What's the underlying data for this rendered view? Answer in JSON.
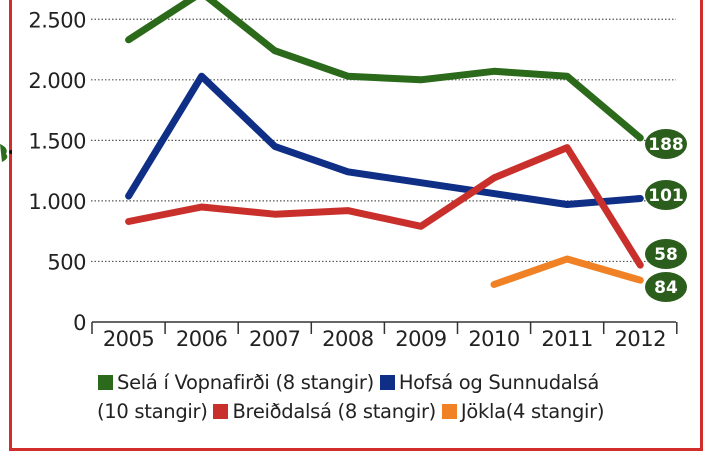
{
  "chart_data": {
    "type": "line",
    "title": "",
    "xlabel": "",
    "ylabel": "",
    "x": [
      "2005",
      "2006",
      "2007",
      "2008",
      "2009",
      "2010",
      "2011",
      "2012"
    ],
    "ylim": [
      0,
      2700
    ],
    "yticks": [
      0,
      500,
      1000,
      1500,
      2000,
      2500
    ],
    "ytick_labels": [
      "0",
      "500",
      "1.000",
      "1.500",
      "2.000",
      "2.500"
    ],
    "grid": "horizontal-dotted",
    "legend_position": "bottom",
    "series": [
      {
        "name": "Selá í Vopnafirði (8 stangir)",
        "color": "#2b6a1a",
        "values": [
          2330,
          2720,
          2240,
          2030,
          2000,
          2070,
          2030,
          1520
        ],
        "end_label": "188"
      },
      {
        "name": "Hofsá og Sunnudalsá (10 stangir)",
        "color": "#0f2f87",
        "values": [
          1040,
          2030,
          1450,
          1240,
          1150,
          1060,
          970,
          1020
        ],
        "end_label": "101"
      },
      {
        "name": "Breiðdalsá (8 stangir)",
        "color": "#c9302c",
        "values": [
          830,
          950,
          890,
          920,
          790,
          1190,
          1440,
          470
        ],
        "end_label": "58"
      },
      {
        "name": "Jökla(4 stangir)",
        "color": "#f08125",
        "values": [
          null,
          null,
          null,
          null,
          null,
          310,
          520,
          345
        ],
        "end_label": "84"
      }
    ],
    "badge_color": "#2b5e1c"
  },
  "legend": {
    "line1": [
      {
        "label": "Selá í Vopnafirði (8 stangir)",
        "color": "#2b6a1a"
      },
      {
        "label": "Hofsá og Sunnudalsá",
        "color": "#0f2f87"
      }
    ],
    "line2_prefix": "(10 stangir)",
    "line2": [
      {
        "label": "Breiðdalsá (8 stangir)",
        "color": "#c9302c"
      },
      {
        "label": "Jökla(4 stangir)",
        "color": "#f08125"
      }
    ]
  }
}
